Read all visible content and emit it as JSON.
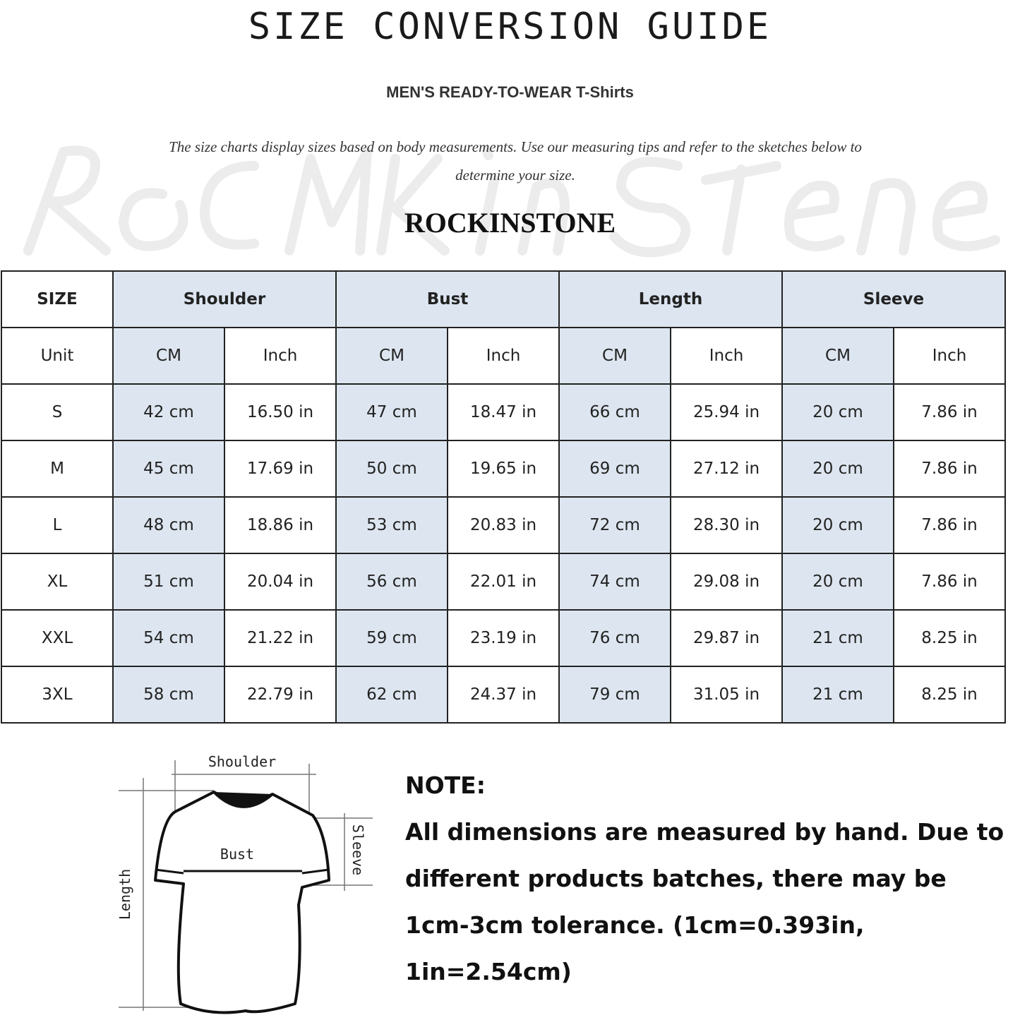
{
  "title": "SIZE CONVERSION GUIDE",
  "subtitle": "MEN'S READY-TO-WEAR T-Shirts",
  "description": "The size charts display sizes based on body measurements. Use our measuring tips and refer to the sketches below to determine your size.",
  "watermark": "Rock In Stone",
  "brand": "ROCKINSTONE",
  "colors": {
    "header_fill": "#dde6f0",
    "border": "#222222"
  },
  "table": {
    "size_label": "SIZE",
    "groups": [
      "Shoulder",
      "Bust",
      "Length",
      "Sleeve"
    ],
    "unit_label": "Unit",
    "units": [
      "CM",
      "Inch",
      "CM",
      "Inch",
      "CM",
      "Inch",
      "CM",
      "Inch"
    ],
    "rows": [
      {
        "size": "S",
        "values": [
          "42 cm",
          "16.50 in",
          "47 cm",
          "18.47  in",
          "66 cm",
          "25.94  in",
          "20 cm",
          "7.86  in"
        ]
      },
      {
        "size": "M",
        "values": [
          "45 cm",
          "17.69  in",
          "50 cm",
          "19.65  in",
          "69 cm",
          "27.12  in",
          "20 cm",
          "7.86  in"
        ]
      },
      {
        "size": "L",
        "values": [
          "48 cm",
          "18.86  in",
          "53 cm",
          "20.83  in",
          "72 cm",
          "28.30  in",
          "20 cm",
          "7.86  in"
        ]
      },
      {
        "size": "XL",
        "values": [
          "51 cm",
          "20.04  in",
          "56 cm",
          "22.01  in",
          "74 cm",
          "29.08  in",
          "20 cm",
          "7.86  in"
        ]
      },
      {
        "size": "XXL",
        "values": [
          "54 cm",
          "21.22  in",
          "59 cm",
          "23.19  in",
          "76 cm",
          "29.87  in",
          "21 cm",
          "8.25  in"
        ]
      },
      {
        "size": "3XL",
        "values": [
          "58 cm",
          "22.79  in",
          "62 cm",
          "24.37  in",
          "79 cm",
          "31.05  in",
          "21 cm",
          "8.25  in"
        ]
      }
    ]
  },
  "sketch": {
    "labels": {
      "shoulder": "Shoulder",
      "bust": "Bust",
      "length": "Length",
      "sleeve": "Sleeve"
    }
  },
  "note": {
    "heading": "NOTE:",
    "text": "All dimensions are measured by hand. Due to different products batches, there may be 1cm-3cm tolerance. (1cm=0.393in, 1in=2.54cm)"
  }
}
